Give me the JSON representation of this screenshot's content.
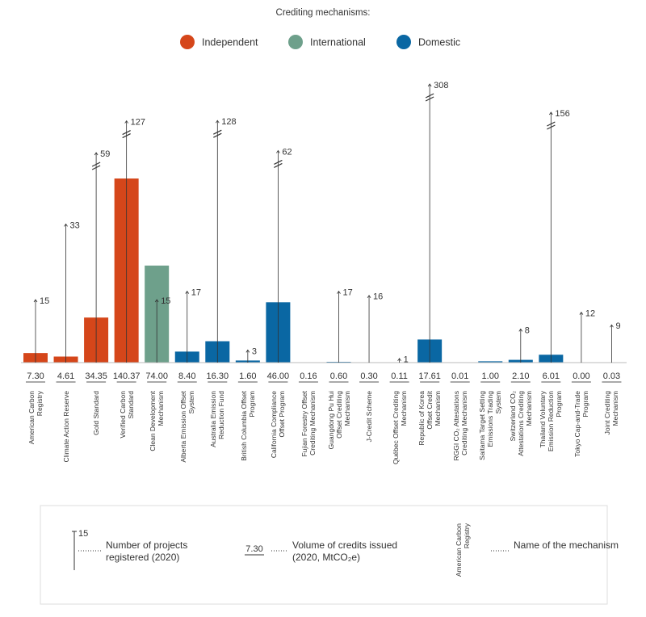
{
  "chart_data": {
    "type": "bar",
    "title": "Crediting mechanisms:",
    "categories": [
      "American Carbon Registry",
      "Climate Action Reserve",
      "Gold Standard",
      "Verified Carbon Standard",
      "Clean Development Mechanism",
      "Alberta Emission Offset System",
      "Australia Emission Reduction Fund",
      "British Columbia Offset Program",
      "California Compliance Offset Program",
      "Fujian Forestry Offset Crediting Mechanism",
      "Guangdong Pu Hui Offset Crediting Mechanism",
      "J-Credit Scheme",
      "Québec Offset Crediting Mechanism",
      "Republic of Korea Offset Credit Mechanism",
      "RGGI CO₂ Attestations Crediting Mechanism",
      "Saitama Target Setting Emissions Trading System",
      "Switzerland CO₂ Attestations Crediting Mechanism",
      "Thailand Voluntary Emission Reduction Program",
      "Tokyo Cap-and-Trade Program",
      "Joint Crediting Mechanism"
    ],
    "series": [
      {
        "name": "Independent",
        "color": "#d5461a",
        "values": [
          7.3,
          4.61,
          34.35,
          140.37,
          null,
          null,
          null,
          null,
          null,
          null,
          null,
          null,
          null,
          null,
          null,
          null,
          null,
          null,
          null,
          null
        ],
        "value_labels": [
          "7.30",
          "4.61",
          "34.35",
          "140.37",
          null,
          null,
          null,
          null,
          null,
          null,
          null,
          null,
          null,
          null,
          null,
          null,
          null,
          null,
          null,
          null
        ]
      },
      {
        "name": "International",
        "color": "#6ea08b",
        "values": [
          null,
          null,
          null,
          null,
          74,
          null,
          null,
          null,
          null,
          null,
          null,
          null,
          null,
          null,
          null,
          null,
          null,
          null,
          null,
          null
        ],
        "value_labels": [
          null,
          null,
          null,
          null,
          "74.00",
          null,
          null,
          null,
          null,
          null,
          null,
          null,
          null,
          null,
          null,
          null,
          null,
          null,
          null,
          null
        ]
      },
      {
        "name": "Domestic",
        "color": "#0a67a3",
        "values": [
          null,
          null,
          null,
          null,
          null,
          8.4,
          16.3,
          1.6,
          46,
          0.16,
          0.6,
          0.3,
          0.11,
          17.61,
          0.01,
          1,
          2.1,
          6.01,
          0,
          0.03
        ],
        "value_labels": [
          null,
          null,
          null,
          null,
          null,
          "8.40",
          "16.30",
          "1.60",
          "46.00",
          "0.16",
          "0.60",
          "0.30",
          "0.11",
          "17.61",
          "0.01",
          "1.00",
          "2.10",
          "6.01",
          "0.00",
          "0.03"
        ]
      }
    ],
    "projects": {
      "name": "Number of projects registered (2020)",
      "values": [
        15,
        33,
        59,
        127,
        15,
        17,
        128,
        3,
        62,
        null,
        17,
        16,
        1,
        308,
        null,
        null,
        8,
        156,
        12,
        9
      ]
    },
    "key": {
      "projects_example": 15,
      "projects_label": "Number of projects registered (2020)",
      "volume_example": "7.30",
      "volume_label": "Volume of credits issued (2020, MtCO₂e)",
      "name_example": "American Carbon Registry",
      "name_label": "Name of the mechanism"
    }
  }
}
